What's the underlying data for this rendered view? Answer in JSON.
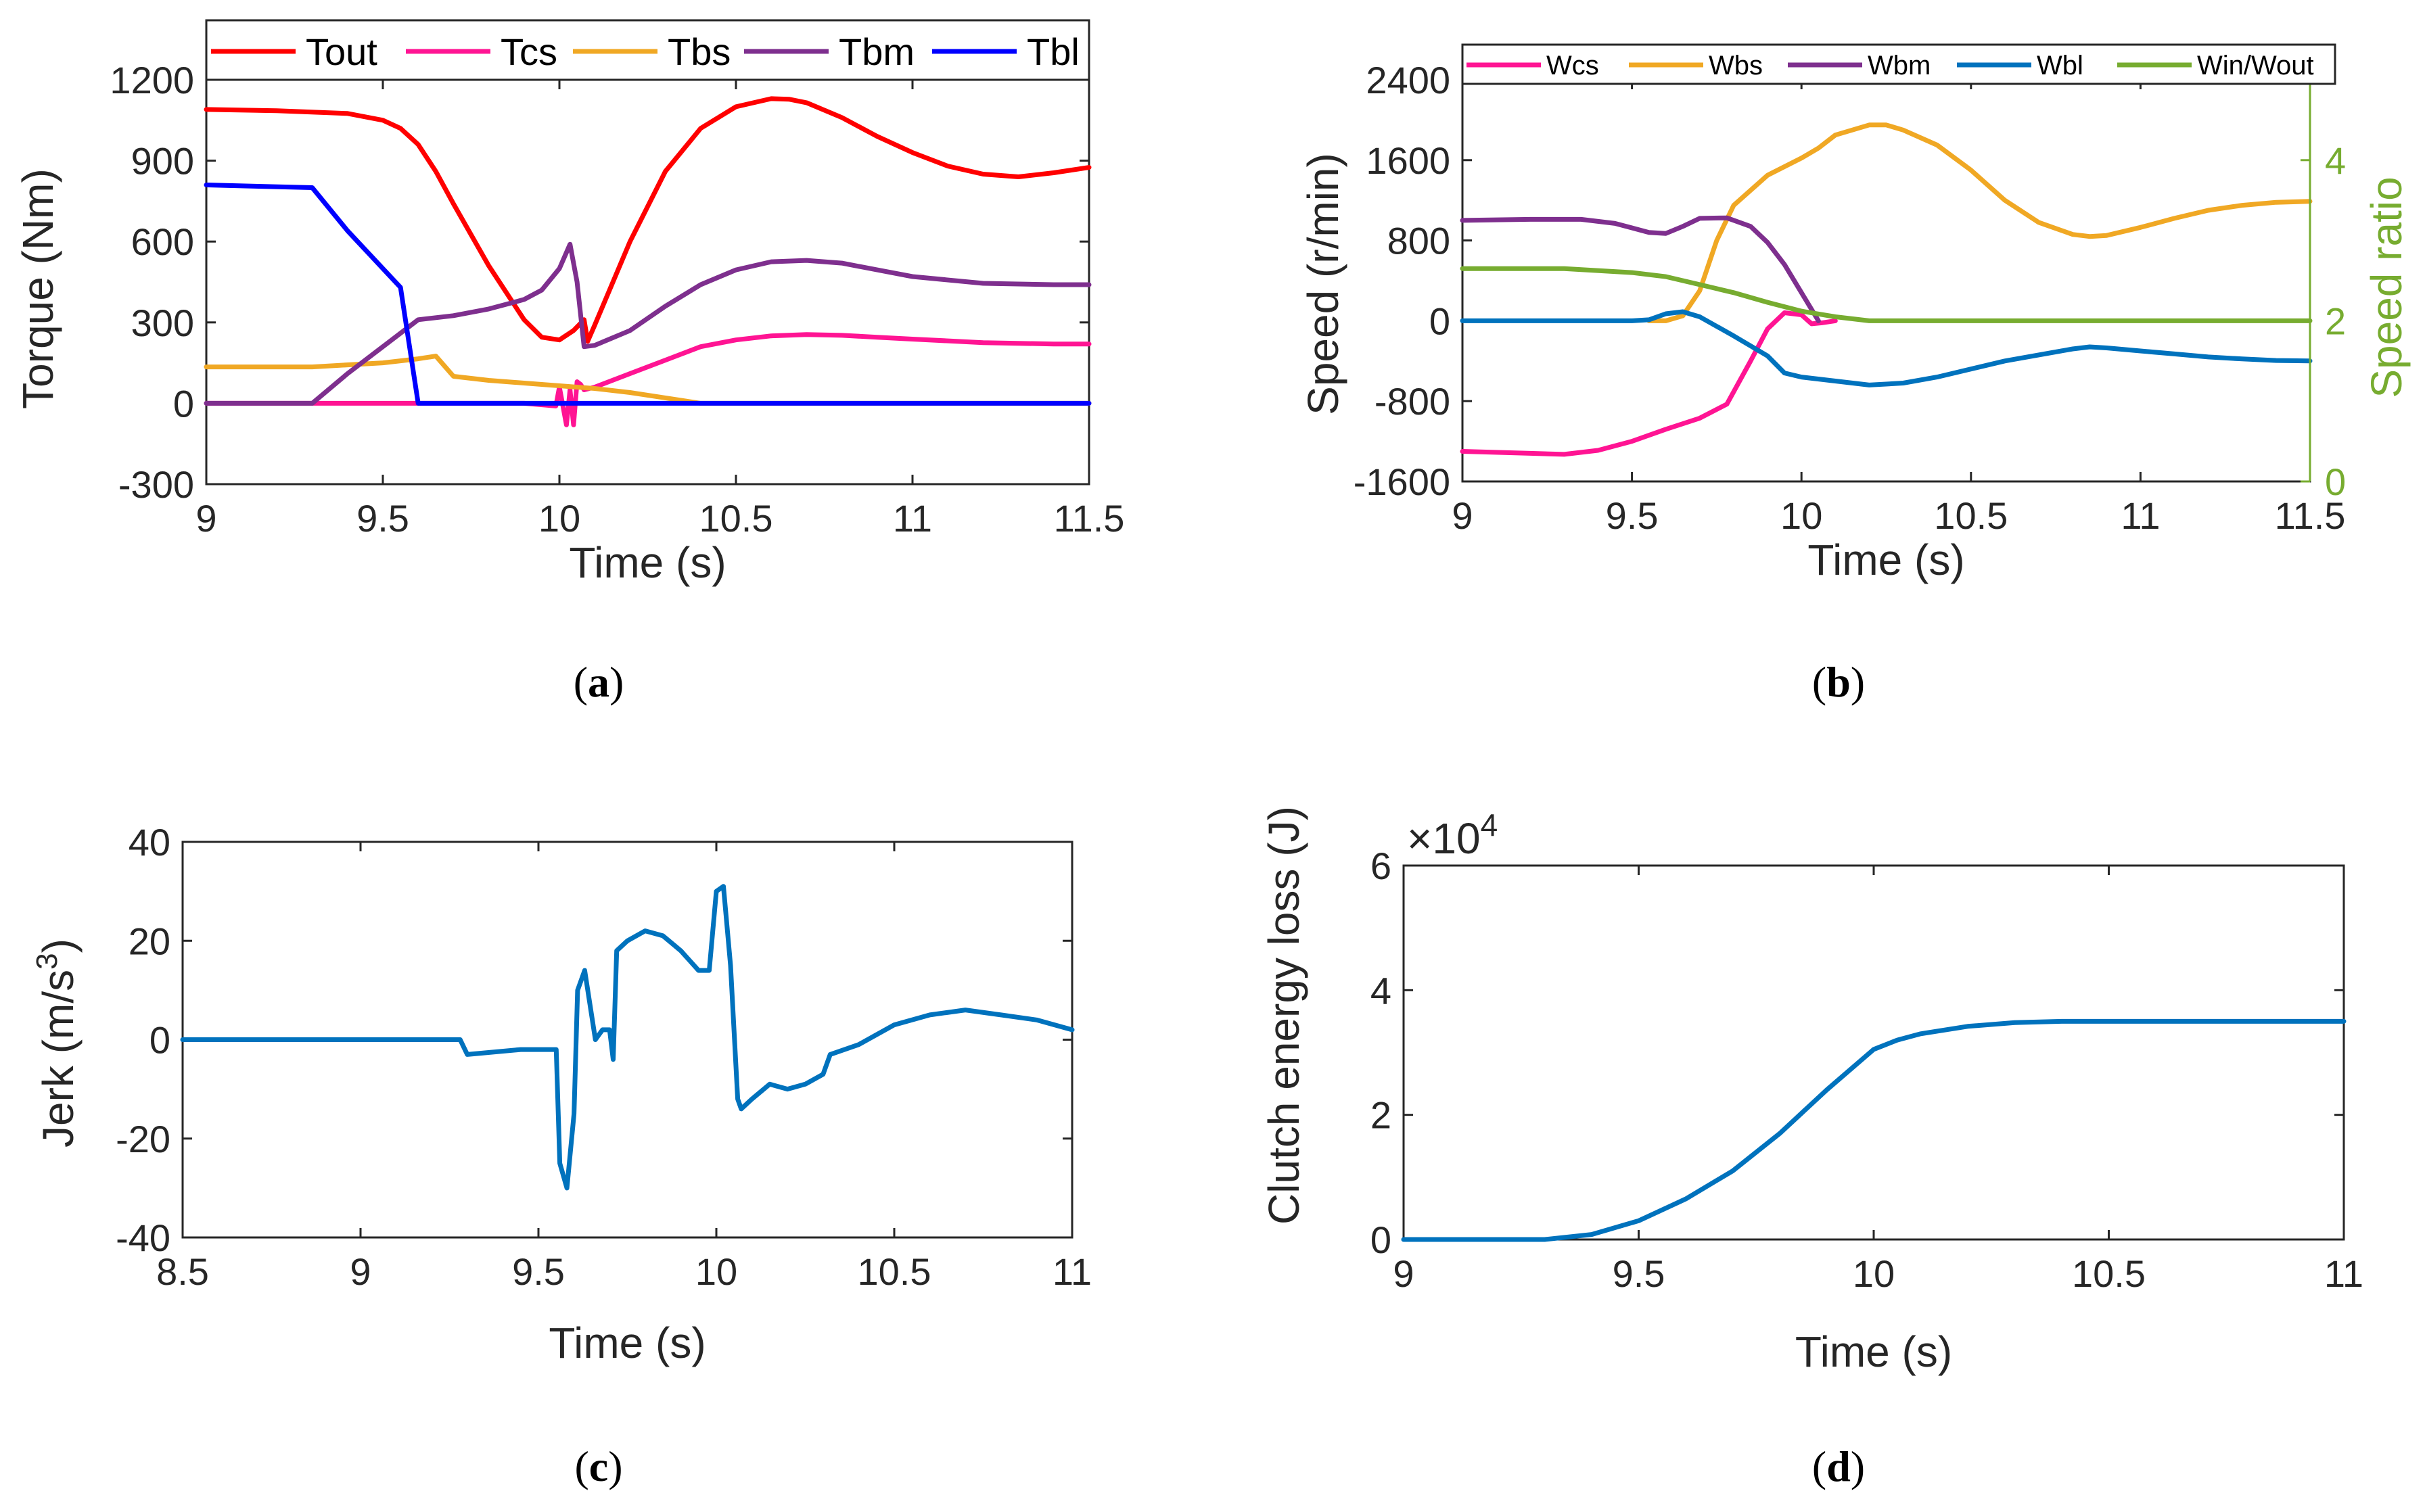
{
  "figure": {
    "captions": [
      {
        "open": "(",
        "letter": "a",
        "close": ")"
      },
      {
        "open": "(",
        "letter": "b",
        "close": ")"
      },
      {
        "open": "(",
        "letter": "c",
        "close": ")"
      },
      {
        "open": "(",
        "letter": "d",
        "close": ")"
      }
    ]
  },
  "chart_data": [
    {
      "id": "a",
      "type": "line",
      "xlabel": "Time (s)",
      "ylabel": "Torque (Nm)",
      "xlim": [
        9,
        11.5
      ],
      "ylim": [
        -300,
        1200
      ],
      "xticks": [
        9,
        9.5,
        10,
        10.5,
        11,
        11.5
      ],
      "xtick_labels": [
        "9",
        "9.5",
        "10",
        "10.5",
        "11",
        "11.5"
      ],
      "yticks": [
        -300,
        0,
        300,
        600,
        900,
        1200
      ],
      "ytick_labels": [
        "-300",
        "0",
        "300",
        "600",
        "900",
        "1200"
      ],
      "legend": "top",
      "series": [
        {
          "name": "Tout",
          "color": "#ff0000",
          "x": [
            9,
            9.2,
            9.4,
            9.5,
            9.55,
            9.6,
            9.65,
            9.7,
            9.8,
            9.9,
            9.95,
            10.0,
            10.04,
            10.07,
            10.08,
            10.1,
            10.2,
            10.3,
            10.4,
            10.5,
            10.6,
            10.65,
            10.7,
            10.8,
            10.9,
            11.0,
            11.1,
            11.2,
            11.3,
            11.4,
            11.5
          ],
          "y": [
            1090,
            1085,
            1075,
            1050,
            1020,
            960,
            860,
            740,
            510,
            310,
            245,
            235,
            270,
            310,
            230,
            290,
            600,
            860,
            1020,
            1100,
            1130,
            1128,
            1115,
            1060,
            990,
            930,
            880,
            850,
            840,
            855,
            875
          ]
        },
        {
          "name": "Tcs",
          "color": "#ff1493",
          "x": [
            9,
            9.5,
            9.9,
            9.99,
            10.0,
            10.02,
            10.03,
            10.04,
            10.05,
            10.06,
            10.07,
            10.1,
            10.2,
            10.3,
            10.4,
            10.5,
            10.6,
            10.7,
            10.8,
            10.9,
            11.0,
            11.2,
            11.4,
            11.5
          ],
          "y": [
            0,
            0,
            0,
            -10,
            60,
            -80,
            50,
            -80,
            80,
            70,
            50,
            60,
            110,
            160,
            210,
            235,
            250,
            255,
            252,
            245,
            238,
            225,
            220,
            220
          ]
        },
        {
          "name": "Tbs",
          "color": "#f0a824",
          "x": [
            9,
            9.3,
            9.5,
            9.6,
            9.65,
            9.68,
            9.7,
            9.8,
            9.9,
            10.0,
            10.1,
            10.2,
            10.3,
            10.4,
            10.6,
            11.0,
            11.5
          ],
          "y": [
            135,
            135,
            150,
            165,
            175,
            130,
            100,
            85,
            75,
            65,
            55,
            40,
            20,
            0,
            0,
            0,
            0
          ]
        },
        {
          "name": "Tbm",
          "color": "#7e2f8e",
          "x": [
            9,
            9.3,
            9.4,
            9.5,
            9.6,
            9.7,
            9.8,
            9.9,
            9.95,
            10.0,
            10.03,
            10.05,
            10.07,
            10.1,
            10.2,
            10.3,
            10.4,
            10.5,
            10.6,
            10.7,
            10.8,
            10.9,
            11.0,
            11.2,
            11.4,
            11.5
          ],
          "y": [
            0,
            0,
            110,
            210,
            310,
            325,
            350,
            385,
            420,
            500,
            590,
            450,
            210,
            215,
            270,
            360,
            440,
            495,
            525,
            530,
            520,
            495,
            470,
            445,
            440,
            440
          ]
        },
        {
          "name": "Tbl",
          "color": "#0000ff",
          "x": [
            9,
            9.3,
            9.4,
            9.5,
            9.55,
            9.6,
            9.7,
            10,
            10.5,
            11,
            11.5
          ],
          "y": [
            810,
            800,
            640,
            500,
            430,
            0,
            0,
            0,
            0,
            0,
            0
          ]
        }
      ]
    },
    {
      "id": "b",
      "type": "line",
      "xlabel": "Time (s)",
      "ylabel": "Speed (r/min)",
      "y2label": "Speed ratio",
      "xlim": [
        9,
        11.5
      ],
      "ylim": [
        -1600,
        2400
      ],
      "y2lim": [
        0,
        5
      ],
      "xticks": [
        9,
        9.5,
        10,
        10.5,
        11,
        11.5
      ],
      "xtick_labels": [
        "9",
        "9.5",
        "10",
        "10.5",
        "11",
        "11.5"
      ],
      "yticks": [
        -1600,
        -800,
        0,
        800,
        1600,
        2400
      ],
      "ytick_labels": [
        "-1600",
        "-800",
        "0",
        "800",
        "1600",
        "2400"
      ],
      "y2ticks": [
        0,
        2,
        4
      ],
      "y2tick_labels": [
        "0",
        "2",
        "4"
      ],
      "y2color": "#77ac30",
      "legend": "top",
      "series": [
        {
          "name": "Wcs",
          "color": "#ff1493",
          "axis": "left",
          "x": [
            9,
            9.2,
            9.3,
            9.4,
            9.5,
            9.6,
            9.7,
            9.78,
            9.85,
            9.9,
            9.95,
            10.0,
            10.03,
            10.06,
            10.1
          ],
          "y": [
            -1300,
            -1320,
            -1330,
            -1290,
            -1200,
            -1080,
            -970,
            -830,
            -400,
            -80,
            80,
            60,
            -30,
            -20,
            0
          ]
        },
        {
          "name": "Wbs",
          "color": "#f0a824",
          "axis": "left",
          "x": [
            9.55,
            9.6,
            9.65,
            9.7,
            9.75,
            9.8,
            9.9,
            10.0,
            10.05,
            10.1,
            10.2,
            10.25,
            10.3,
            10.4,
            10.5,
            10.6,
            10.7,
            10.8,
            10.85,
            10.9,
            11.0,
            11.1,
            11.2,
            11.3,
            11.4,
            11.5
          ],
          "y": [
            0,
            0,
            50,
            300,
            800,
            1150,
            1450,
            1620,
            1720,
            1850,
            1950,
            1950,
            1900,
            1750,
            1500,
            1200,
            980,
            860,
            840,
            850,
            930,
            1020,
            1100,
            1150,
            1180,
            1190
          ]
        },
        {
          "name": "Wbm",
          "color": "#7e2f8e",
          "axis": "left",
          "x": [
            9,
            9.2,
            9.35,
            9.45,
            9.55,
            9.6,
            9.65,
            9.7,
            9.78,
            9.85,
            9.9,
            9.95,
            10.0,
            10.05
          ],
          "y": [
            1000,
            1010,
            1010,
            970,
            880,
            870,
            940,
            1020,
            1025,
            940,
            780,
            560,
            280,
            0
          ]
        },
        {
          "name": "Wbl",
          "color": "#0072bd",
          "axis": "left",
          "x": [
            9,
            9.5,
            9.55,
            9.6,
            9.65,
            9.7,
            9.8,
            9.9,
            9.95,
            10.0,
            10.2,
            10.3,
            10.4,
            10.6,
            10.8,
            10.85,
            10.9,
            11.0,
            11.1,
            11.2,
            11.3,
            11.4,
            11.5
          ],
          "y": [
            0,
            0,
            10,
            70,
            90,
            40,
            -150,
            -350,
            -520,
            -560,
            -640,
            -620,
            -560,
            -400,
            -280,
            -260,
            -270,
            -300,
            -330,
            -360,
            -380,
            -395,
            -400
          ]
        },
        {
          "name": "Win/Wout",
          "color": "#77ac30",
          "axis": "right",
          "x": [
            9,
            9.3,
            9.5,
            9.6,
            9.7,
            9.8,
            9.9,
            10.0,
            10.1,
            10.2,
            10.3,
            11.5
          ],
          "y": [
            2.65,
            2.65,
            2.6,
            2.55,
            2.45,
            2.35,
            2.23,
            2.12,
            2.05,
            2.0,
            2.0,
            2.0
          ]
        }
      ]
    },
    {
      "id": "c",
      "type": "line",
      "xlabel": "Time (s)",
      "ylabel_main": "Jerk (m/s",
      "ylabel_sup": "3",
      "ylabel_end": ")",
      "xlim": [
        8.5,
        11
      ],
      "ylim": [
        -40,
        40
      ],
      "xticks": [
        8.5,
        9,
        9.5,
        10,
        10.5,
        11
      ],
      "xtick_labels": [
        "8.5",
        "9",
        "9.5",
        "10",
        "10.5",
        "11"
      ],
      "yticks": [
        -40,
        -20,
        0,
        20,
        40
      ],
      "ytick_labels": [
        "-40",
        "-20",
        "0",
        "20",
        "40"
      ],
      "series": [
        {
          "name": "Jerk",
          "color": "#0072bd",
          "x": [
            8.5,
            9.0,
            9.28,
            9.3,
            9.45,
            9.55,
            9.56,
            9.58,
            9.6,
            9.61,
            9.63,
            9.66,
            9.68,
            9.7,
            9.71,
            9.72,
            9.75,
            9.8,
            9.85,
            9.9,
            9.95,
            9.98,
            10.0,
            10.02,
            10.04,
            10.06,
            10.07,
            10.1,
            10.15,
            10.2,
            10.25,
            10.3,
            10.32,
            10.4,
            10.45,
            10.5,
            10.6,
            10.7,
            10.8,
            10.9,
            11.0
          ],
          "y": [
            0,
            0,
            0,
            -3,
            -2,
            -2,
            -25,
            -30,
            -15,
            10,
            14,
            0,
            2,
            2,
            -4,
            18,
            20,
            22,
            21,
            18,
            14,
            14,
            30,
            31,
            15,
            -12,
            -14,
            -12,
            -9,
            -10,
            -9,
            -7,
            -3,
            -1,
            1,
            3,
            5,
            6,
            5,
            4,
            2
          ]
        }
      ]
    },
    {
      "id": "d",
      "type": "line",
      "xlabel": "Time (s)",
      "ylabel": "Clutch energy loss (J)",
      "exponent_base": "×10",
      "exponent_power": "4",
      "xlim": [
        9,
        11
      ],
      "ylim": [
        0,
        6
      ],
      "xticks": [
        9,
        9.5,
        10,
        10.5,
        11
      ],
      "xtick_labels": [
        "9",
        "9.5",
        "10",
        "10.5",
        "11"
      ],
      "yticks": [
        0,
        2,
        4,
        6
      ],
      "ytick_labels": [
        "0",
        "2",
        "4",
        "6"
      ],
      "series": [
        {
          "name": "Clutch energy loss",
          "color": "#0072bd",
          "x": [
            9,
            9.3,
            9.4,
            9.5,
            9.6,
            9.7,
            9.8,
            9.9,
            10.0,
            10.05,
            10.1,
            10.2,
            10.3,
            10.4,
            10.6,
            11.0
          ],
          "y": [
            0,
            0,
            0.08,
            0.3,
            0.65,
            1.1,
            1.7,
            2.4,
            3.05,
            3.2,
            3.3,
            3.42,
            3.48,
            3.5,
            3.5,
            3.5
          ]
        }
      ]
    }
  ]
}
